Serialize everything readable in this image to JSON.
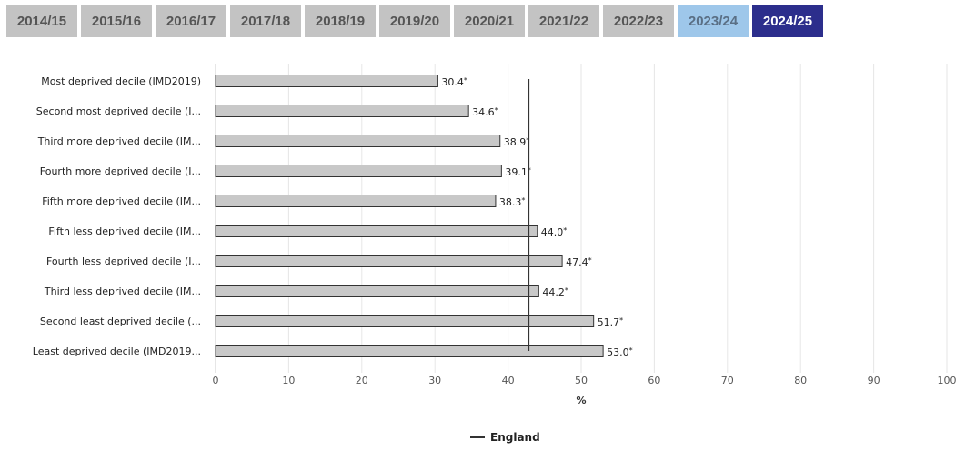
{
  "tabs": [
    {
      "label": "2014/15",
      "state": "normal"
    },
    {
      "label": "2015/16",
      "state": "normal"
    },
    {
      "label": "2016/17",
      "state": "normal"
    },
    {
      "label": "2017/18",
      "state": "normal"
    },
    {
      "label": "2018/19",
      "state": "normal"
    },
    {
      "label": "2019/20",
      "state": "normal"
    },
    {
      "label": "2020/21",
      "state": "normal"
    },
    {
      "label": "2021/22",
      "state": "normal"
    },
    {
      "label": "2022/23",
      "state": "normal"
    },
    {
      "label": "2023/24",
      "state": "previous"
    },
    {
      "label": "2024/25",
      "state": "active"
    }
  ],
  "chart_data": {
    "type": "bar",
    "orientation": "horizontal",
    "categories": [
      "Most deprived decile (IMD2019)",
      "Second most deprived decile (I...",
      "Third more deprived decile (IM...",
      "Fourth more deprived decile (I...",
      "Fifth more deprived decile (IM...",
      "Fifth less deprived decile (IM...",
      "Fourth less deprived decile (I...",
      "Third less deprived decile (IM...",
      "Second least deprived decile (...",
      "Least deprived decile (IMD2019..."
    ],
    "values": [
      30.4,
      34.6,
      38.9,
      39.1,
      38.3,
      44.0,
      47.4,
      44.2,
      51.7,
      53.0
    ],
    "value_labels": [
      "30.4",
      "34.6",
      "38.9",
      "39.1",
      "38.3",
      "44.0",
      "47.4",
      "44.2",
      "51.7",
      "53.0"
    ],
    "value_marker": "*",
    "xlabel": "%",
    "xlim": [
      0,
      100
    ],
    "xticks": [
      0,
      10,
      20,
      30,
      40,
      50,
      60,
      70,
      80,
      90,
      100
    ],
    "grid": true,
    "reference_line": {
      "name": "England",
      "value": 42.8
    },
    "legend": {
      "position": "bottom-center",
      "entries": [
        "England"
      ]
    },
    "colors": {
      "bar_fill": "#c8c8c8",
      "bar_stroke": "#333333",
      "reference": "#333333",
      "grid": "#e6e6e6"
    }
  }
}
